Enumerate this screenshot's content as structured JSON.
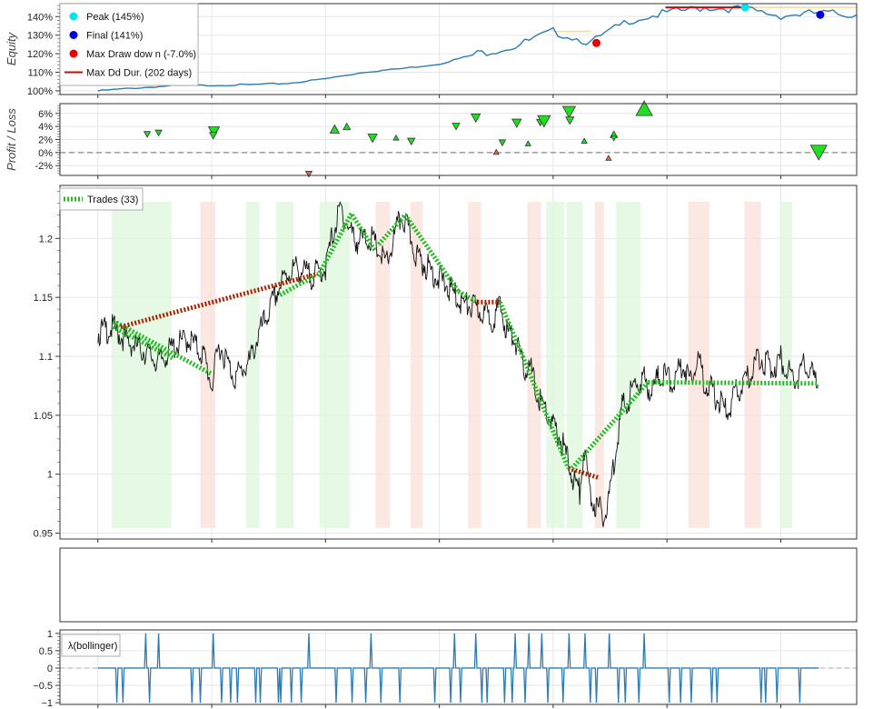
{
  "chart_data": [
    {
      "type": "line",
      "ylabel": "Equity",
      "ylim": [
        98,
        147
      ],
      "yticks": [
        "100%",
        "110%",
        "120%",
        "130%",
        "140%"
      ],
      "ytick_values": [
        100,
        110,
        120,
        130,
        140
      ],
      "grid": true,
      "legend_position": "top-left",
      "series_color": "#2c7bb6",
      "x": [
        0,
        5,
        10,
        15,
        20,
        25,
        30,
        35,
        40,
        45,
        50,
        55,
        60,
        65,
        70,
        75,
        80,
        85,
        90,
        95,
        100
      ],
      "values": [
        100,
        101.5,
        102.8,
        103,
        103.3,
        104,
        106.5,
        110,
        112,
        114.5,
        120,
        124,
        132,
        126,
        138,
        142,
        145,
        144,
        140.5,
        142,
        141
      ],
      "legend": [
        {
          "label": "Peak (145%)",
          "color": "#00e5ee",
          "marker": "dot"
        },
        {
          "label": "Final (141%)",
          "color": "#0000dd",
          "marker": "dot"
        },
        {
          "label": "Max Draw dow n (-7.0%)",
          "color": "#ee0000",
          "marker": "dot"
        },
        {
          "label": "Max Dd Dur. (202 days)",
          "color": "#dd0000",
          "marker": "line"
        }
      ],
      "peak": {
        "x": 85.3,
        "y": 145
      },
      "final": {
        "x": 95.2,
        "y": 141
      },
      "max_drawdown": {
        "x": 65.7,
        "y": 125.8
      },
      "max_dd_duration": {
        "x_start": 74.8,
        "x_end": 85.3,
        "y": 145
      }
    },
    {
      "type": "scatter",
      "ylabel": "Profit / Loss",
      "ylim": [
        -3.5,
        7.5
      ],
      "yticks": [
        "-2%",
        "0%",
        "2%",
        "4%",
        "6%"
      ],
      "ytick_values": [
        -2,
        0,
        2,
        4,
        6
      ],
      "grid": true,
      "win_color": "#22dd22",
      "loss_color": "#e8684a",
      "trades": [
        {
          "x": 6.5,
          "y": 2.8,
          "size": 7,
          "dir": "down",
          "win": true
        },
        {
          "x": 8.0,
          "y": 3.0,
          "size": 7,
          "dir": "down",
          "win": true
        },
        {
          "x": 15.3,
          "y": 3.2,
          "size": 12,
          "dir": "down",
          "win": true
        },
        {
          "x": 15.2,
          "y": 2.6,
          "size": 8,
          "dir": "down",
          "win": true
        },
        {
          "x": 27.8,
          "y": -3.3,
          "size": 7,
          "dir": "down",
          "win": false
        },
        {
          "x": 31.2,
          "y": 3.6,
          "size": 10,
          "dir": "up",
          "win": true
        },
        {
          "x": 32.8,
          "y": 4.0,
          "size": 8,
          "dir": "up",
          "win": true
        },
        {
          "x": 36.2,
          "y": 2.2,
          "size": 10,
          "dir": "down",
          "win": true
        },
        {
          "x": 39.3,
          "y": 2.3,
          "size": 6,
          "dir": "up",
          "win": true
        },
        {
          "x": 41.3,
          "y": 1.7,
          "size": 8,
          "dir": "down",
          "win": true
        },
        {
          "x": 47.2,
          "y": 4.0,
          "size": 8,
          "dir": "down",
          "win": true
        },
        {
          "x": 49.8,
          "y": 5.3,
          "size": 10,
          "dir": "down",
          "win": true
        },
        {
          "x": 52.5,
          "y": 0.1,
          "size": 6,
          "dir": "up",
          "win": false
        },
        {
          "x": 53.3,
          "y": 1.5,
          "size": 7,
          "dir": "down",
          "win": true
        },
        {
          "x": 55.2,
          "y": 4.5,
          "size": 10,
          "dir": "down",
          "win": true
        },
        {
          "x": 56.7,
          "y": 1.4,
          "size": 6,
          "dir": "up",
          "win": true
        },
        {
          "x": 58.3,
          "y": 4.6,
          "size": 8,
          "dir": "down",
          "win": true
        },
        {
          "x": 58.8,
          "y": 4.8,
          "size": 14,
          "dir": "down",
          "win": true
        },
        {
          "x": 62.1,
          "y": 6.2,
          "size": 14,
          "dir": "down",
          "win": true
        },
        {
          "x": 62.2,
          "y": 4.9,
          "size": 9,
          "dir": "down",
          "win": true
        },
        {
          "x": 64.1,
          "y": 1.8,
          "size": 6,
          "dir": "up",
          "win": true
        },
        {
          "x": 67.3,
          "y": -0.8,
          "size": 6,
          "dir": "up",
          "win": false
        },
        {
          "x": 68.0,
          "y": 2.8,
          "size": 8,
          "dir": "up",
          "win": true
        },
        {
          "x": 68.0,
          "y": 2.2,
          "size": 6,
          "dir": "down",
          "win": true
        },
        {
          "x": 72.0,
          "y": 6.8,
          "size": 18,
          "dir": "up",
          "win": true
        },
        {
          "x": 95.0,
          "y": 0.0,
          "size": 18,
          "dir": "down",
          "win": true
        }
      ]
    },
    {
      "type": "line",
      "ylim": [
        0.945,
        1.245
      ],
      "yticks": [
        "0.95",
        "1",
        "1.05",
        "1.1",
        "1.15",
        "1.2"
      ],
      "ytick_values": [
        0.95,
        1.0,
        1.05,
        1.1,
        1.15,
        1.2
      ],
      "grid": true,
      "price_color": "#111111",
      "price_x": [
        0,
        2,
        4,
        6,
        8,
        10,
        12,
        14,
        15,
        16,
        18,
        20,
        21,
        22,
        23,
        24,
        25,
        26,
        27,
        28,
        30,
        31,
        32,
        33,
        34,
        36,
        38,
        40,
        41,
        42,
        44,
        46,
        48,
        50,
        52,
        53,
        54,
        55,
        56,
        57,
        58,
        59,
        60,
        61,
        62,
        63,
        63.5,
        64,
        65,
        66,
        67,
        68,
        69,
        70,
        71,
        72,
        73,
        74,
        75,
        76,
        77,
        78,
        79,
        80,
        81,
        82,
        83,
        84,
        85,
        86,
        87,
        88,
        89,
        90,
        91,
        92,
        93,
        94,
        95
      ],
      "price_y": [
        1.12,
        1.124,
        1.112,
        1.105,
        1.095,
        1.108,
        1.115,
        1.1,
        1.075,
        1.11,
        1.082,
        1.095,
        1.115,
        1.13,
        1.145,
        1.16,
        1.17,
        1.175,
        1.172,
        1.168,
        1.175,
        1.205,
        1.225,
        1.21,
        1.198,
        1.2,
        1.178,
        1.22,
        1.205,
        1.185,
        1.172,
        1.16,
        1.145,
        1.14,
        1.132,
        1.142,
        1.12,
        1.115,
        1.09,
        1.09,
        1.065,
        1.055,
        1.04,
        1.03,
        1.01,
        0.99,
        0.985,
        1.02,
        0.98,
        0.97,
        0.965,
        1.01,
        1.055,
        1.065,
        1.078,
        1.08,
        1.07,
        1.085,
        1.082,
        1.078,
        1.095,
        1.08,
        1.1,
        1.078,
        1.07,
        1.06,
        1.052,
        1.068,
        1.075,
        1.085,
        1.1,
        1.095,
        1.09,
        1.098,
        1.088,
        1.08,
        1.092,
        1.085,
        1.078
      ],
      "legend": [
        {
          "label": "Trades (33)"
        }
      ],
      "trade_win_color": "#22bb22",
      "trade_loss_color": "#aa2200",
      "trades": [
        {
          "x1": 2,
          "y1": 1.125,
          "x2": 10,
          "y2": 1.098,
          "win": true
        },
        {
          "x1": 2,
          "y1": 1.13,
          "x2": 15,
          "y2": 1.085,
          "win": true
        },
        {
          "x1": 3,
          "y1": 1.125,
          "x2": 29,
          "y2": 1.17,
          "win": false
        },
        {
          "x1": 24,
          "y1": 1.152,
          "x2": 28.5,
          "y2": 1.168,
          "win": true
        },
        {
          "x1": 29,
          "y1": 1.168,
          "x2": 33.5,
          "y2": 1.222,
          "win": true
        },
        {
          "x1": 33.5,
          "y1": 1.22,
          "x2": 36.5,
          "y2": 1.19,
          "win": true
        },
        {
          "x1": 37,
          "y1": 1.195,
          "x2": 40.5,
          "y2": 1.22,
          "win": true
        },
        {
          "x1": 40.5,
          "y1": 1.22,
          "x2": 47.5,
          "y2": 1.155,
          "win": true
        },
        {
          "x1": 47.5,
          "y1": 1.155,
          "x2": 50,
          "y2": 1.146,
          "win": true
        },
        {
          "x1": 50,
          "y1": 1.146,
          "x2": 53,
          "y2": 1.146,
          "win": false
        },
        {
          "x1": 53,
          "y1": 1.146,
          "x2": 56,
          "y2": 1.1,
          "win": true
        },
        {
          "x1": 56,
          "y1": 1.1,
          "x2": 58.5,
          "y2": 1.06,
          "win": true
        },
        {
          "x1": 58.5,
          "y1": 1.06,
          "x2": 62,
          "y2": 1.005,
          "win": true
        },
        {
          "x1": 62,
          "y1": 1.005,
          "x2": 66,
          "y2": 0.997,
          "win": false
        },
        {
          "x1": 62.5,
          "y1": 1.005,
          "x2": 72.5,
          "y2": 1.078,
          "win": true
        },
        {
          "x1": 72.5,
          "y1": 1.078,
          "x2": 95,
          "y2": 1.077,
          "win": true
        }
      ],
      "shades": [
        {
          "x1": 1.8,
          "x2": 4.5,
          "win": true
        },
        {
          "x1": 4.5,
          "x2": 9.7,
          "win": true
        },
        {
          "x1": 13.5,
          "x2": 15.5,
          "win": false
        },
        {
          "x1": 19.5,
          "x2": 21.3,
          "win": true
        },
        {
          "x1": 23.5,
          "x2": 25.8,
          "win": true
        },
        {
          "x1": 29.2,
          "x2": 33.2,
          "win": true
        },
        {
          "x1": 36.6,
          "x2": 38.5,
          "win": false
        },
        {
          "x1": 41.2,
          "x2": 42.8,
          "win": false
        },
        {
          "x1": 48.8,
          "x2": 50.5,
          "win": false
        },
        {
          "x1": 56.6,
          "x2": 58.4,
          "win": false
        },
        {
          "x1": 59.1,
          "x2": 61.5,
          "win": true
        },
        {
          "x1": 61.8,
          "x2": 63.9,
          "win": true
        },
        {
          "x1": 65.5,
          "x2": 66.7,
          "win": false
        },
        {
          "x1": 68.3,
          "x2": 71.5,
          "win": true
        },
        {
          "x1": 77.8,
          "x2": 80.6,
          "win": false
        },
        {
          "x1": 85.2,
          "x2": 87.4,
          "win": false
        },
        {
          "x1": 89.9,
          "x2": 91.5,
          "win": true
        }
      ]
    },
    {
      "type": "line",
      "ylim": [
        -1.05,
        1.1
      ],
      "yticks": [
        "−1",
        "−0.5",
        "0",
        "0.5",
        "1"
      ],
      "ytick_values": [
        -1,
        -0.5,
        0,
        0.5,
        1
      ],
      "grid": true,
      "series_color": "#2c7bb6",
      "legend": [
        {
          "label": "λ(bollinger)"
        }
      ],
      "spikes_pos": [
        6.3,
        8.0,
        15.2,
        27.8,
        36.0,
        47.0,
        49.8,
        55.0,
        56.8,
        58.5,
        62.1,
        64.2,
        67.4,
        72.0
      ],
      "spikes_neg": [
        2.5,
        3.3,
        6.8,
        12.4,
        13.5,
        16.3,
        17.5,
        18.4,
        20.8,
        21.4,
        23.8,
        24.1,
        25.5,
        26.8,
        31.4,
        33.5,
        35.3,
        37.3,
        39.8,
        44.4,
        46.5,
        47.8,
        50.6,
        51.3,
        53.6,
        54.6,
        56.3,
        59.3,
        61.3,
        64.9,
        65.7,
        68.6,
        69.5,
        71.3,
        75.3,
        76.8,
        78.2,
        80.9,
        81.6,
        87.4,
        88.0,
        89.5,
        92.5
      ]
    }
  ]
}
